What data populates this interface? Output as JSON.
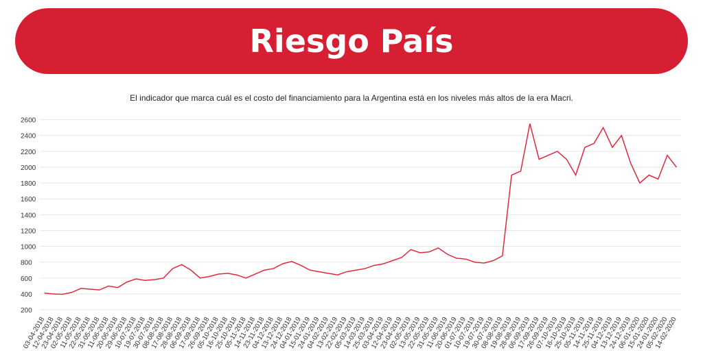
{
  "chart_data": {
    "type": "line",
    "title": "Riesgo País",
    "subtitle": "El indicador que marca cuál es el costo del financiamiento para la Argentina está en los niveles más altos de la era Macri.",
    "x": [
      "03-04-2018",
      "12-04-2018",
      "23-04-2018",
      "02-05-2018",
      "11-05-2018",
      "22-05-2018",
      "31-05-2018",
      "11-06-2018",
      "20-06-2018",
      "29-06-2018",
      "10-07-2018",
      "19-07-2018",
      "30-07-2018",
      "08-08-2018",
      "17-08-2018",
      "28-08-2018",
      "06-09-2018",
      "17-09-2018",
      "26-09-2018",
      "05-10-2018",
      "16-10-2018",
      "25-10-2018",
      "05-11-2018",
      "14-11-2018",
      "23-11-2018",
      "04-12-2018",
      "13-12-2018",
      "24-12-2018",
      "04-01-2019",
      "15-01-2019",
      "24-01-2019",
      "04-02-2019",
      "13-02-2019",
      "22-02-2019",
      "05-03-2019",
      "14-03-2019",
      "25-03-2019",
      "03-04-2019",
      "12-04-2019",
      "23-04-2019",
      "02-05-2019",
      "13-05-2019",
      "22-05-2019",
      "31-05-2019",
      "11-06-2019",
      "20-06-2019",
      "01-07-2019",
      "10-07-2019",
      "19-07-2019",
      "30-07-2019",
      "08-08-2019",
      "19-08-2019",
      "28-08-2019",
      "06-09-2019",
      "17-09-2019",
      "26-09-2019",
      "07-10-2019",
      "16-10-2019",
      "25-10-2019",
      "05-11-2019",
      "14-11-2019",
      "25-11-2019",
      "04-12-2019",
      "13-12-2019",
      "24-12-2019",
      "06-01-2020",
      "15-01-2020",
      "24-01-2020",
      "05-02-2020",
      "14-02-2020"
    ],
    "series": [
      {
        "color": "#e0283c",
        "values": [
          410,
          400,
          395,
          420,
          470,
          460,
          450,
          500,
          480,
          550,
          590,
          570,
          580,
          600,
          720,
          770,
          700,
          600,
          620,
          650,
          660,
          640,
          600,
          650,
          700,
          720,
          780,
          810,
          760,
          700,
          680,
          660,
          640,
          680,
          700,
          720,
          760,
          780,
          820,
          860,
          960,
          920,
          930,
          980,
          900,
          850,
          840,
          800,
          790,
          820,
          880,
          1900,
          1950,
          2550,
          2100,
          2150,
          2200,
          2100,
          1900,
          2250,
          2300,
          2500,
          2250,
          2400,
          2050,
          1800,
          1900,
          1850,
          2150,
          2000
        ]
      }
    ],
    "ylim": [
      140,
      2640
    ],
    "yticks": [
      200,
      400,
      600,
      800,
      1000,
      1200,
      1400,
      1600,
      1800,
      2000,
      2200,
      2400,
      2600
    ],
    "grid": true
  }
}
